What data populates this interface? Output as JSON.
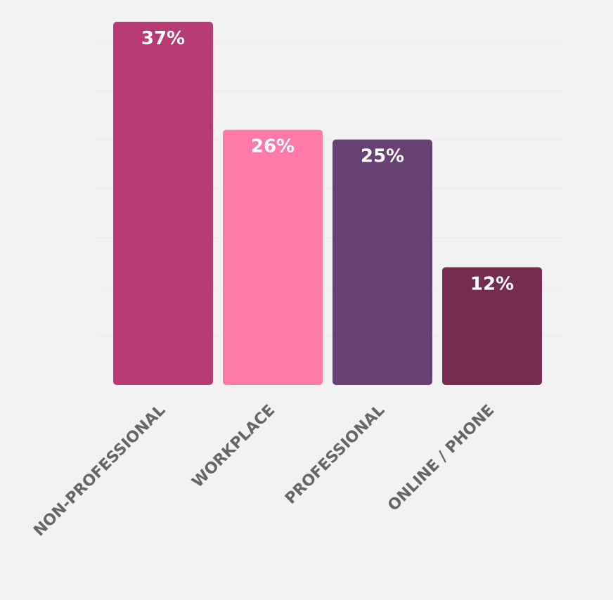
{
  "chart_data": {
    "type": "bar",
    "categories": [
      "NON-PROFESSIONAL",
      "WORKPLACE",
      "PROFESSIONAL",
      "ONLINE / PHONE"
    ],
    "values": [
      37,
      26,
      25,
      12
    ],
    "value_labels": [
      "37%",
      "26%",
      "25%",
      "12%"
    ],
    "colors": [
      "#b93b75",
      "#ff7aa9",
      "#684173",
      "#742d50"
    ],
    "ylim": [
      0,
      37
    ],
    "yticks": [
      5,
      10,
      15,
      20,
      25,
      30,
      35
    ],
    "grid": true
  }
}
